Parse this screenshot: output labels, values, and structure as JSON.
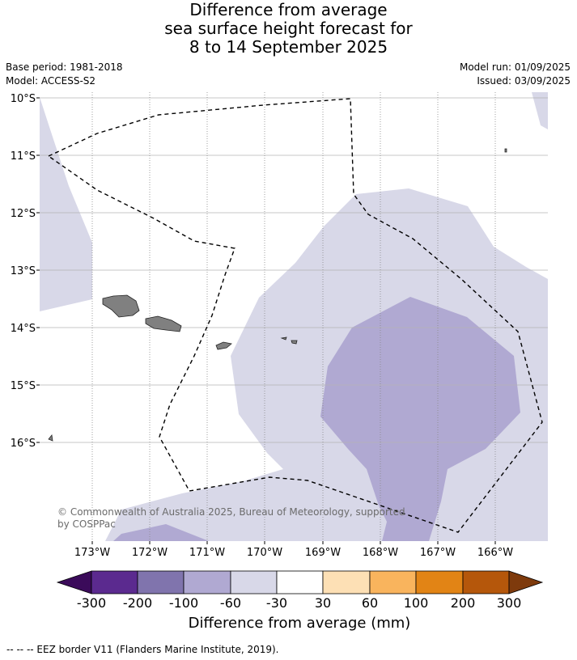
{
  "header": {
    "title_lines": [
      "Difference from average",
      "sea surface height forecast for",
      "8 to 14 September 2025"
    ],
    "base_period": "Base period: 1981-2018",
    "model": "Model: ACCESS-S2",
    "model_run": "Model run: 01/09/2025",
    "issued": "Issued: 03/09/2025"
  },
  "map": {
    "lat_labels": [
      "10°S",
      "11°S",
      "12°S",
      "13°S",
      "14°S",
      "15°S",
      "16°S"
    ],
    "lon_labels": [
      "173°W",
      "172°W",
      "171°W",
      "170°W",
      "169°W",
      "168°W",
      "167°W",
      "166°W"
    ],
    "copyright": "© Commonwealth of Australia 2025, Bureau of Meteorology, supported by COSPPac",
    "colors": {
      "band_neg60_neg30": "#d8d8e8",
      "band_neg100_neg60": "#b0a9d2",
      "land": "#808080",
      "eez_border": "#000000"
    }
  },
  "colorbar": {
    "title": "Difference from average (mm)",
    "tick_labels": [
      "-300",
      "-200",
      "-100",
      "-60",
      "-30",
      "30",
      "60",
      "100",
      "200",
      "300"
    ],
    "colors": [
      "#3b0b5a",
      "#5b2a8f",
      "#8074ad",
      "#b0a9d2",
      "#d8d8e8",
      "#ffffff",
      "#fde0b5",
      "#f9b45d",
      "#e28415",
      "#b5570b",
      "#7e3a0c"
    ]
  },
  "footnote": "--  --  -- EEZ border V11 (Flanders Marine Institute, 2019)."
}
